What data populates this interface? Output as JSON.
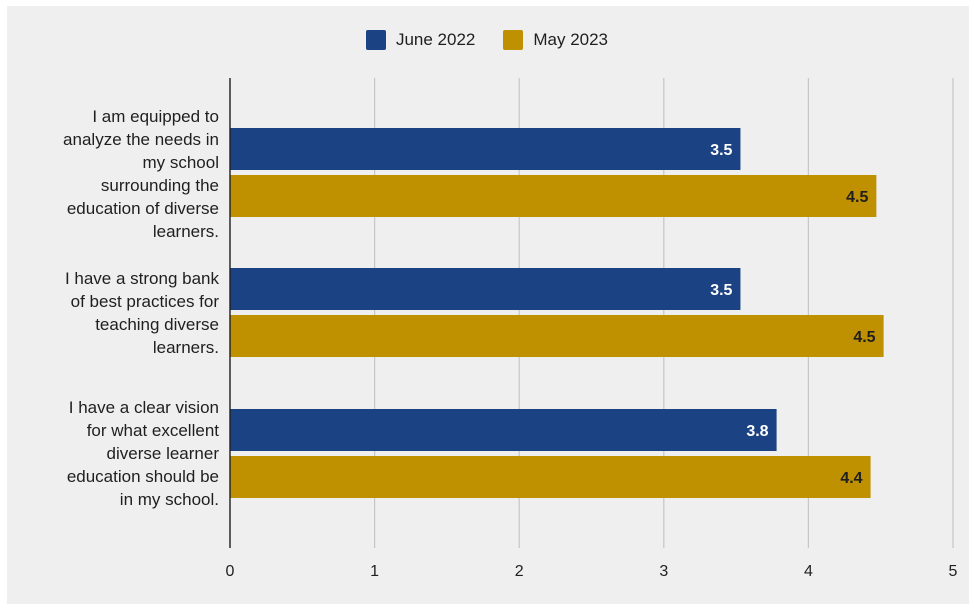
{
  "chart_data": {
    "type": "bar",
    "orientation": "horizontal",
    "title": "",
    "xlabel": "",
    "ylabel": "",
    "xlim": [
      0,
      5
    ],
    "ticks": [
      "0",
      "1",
      "2",
      "3",
      "4",
      "5"
    ],
    "grid": true,
    "legend_position": "top",
    "categories": [
      "I am equipped to analyze the needs in my school surrounding the education of diverse learners.",
      "I have a strong bank of best practices for teaching diverse learners.",
      "I have a clear vision for what excellent diverse learner education should be in my school."
    ],
    "category_lines": [
      [
        "I am equipped to",
        "analyze the needs in",
        "my school",
        "surrounding the",
        "education of diverse",
        "learners."
      ],
      [
        "I have a strong bank",
        "of best practices for",
        "teaching diverse",
        "learners."
      ],
      [
        "I have a clear vision",
        "for what excellent",
        "diverse learner",
        "education should be",
        "in my school."
      ]
    ],
    "series": [
      {
        "name": "June 2022",
        "color": "#1b4282",
        "label_color": "#ffffff",
        "values": [
          3.53,
          3.53,
          3.78
        ],
        "labels": [
          "3.5",
          "3.5",
          "3.8"
        ]
      },
      {
        "name": "May 2023",
        "color": "#bf9000",
        "label_color": "#1f1f1f",
        "values": [
          4.47,
          4.52,
          4.43
        ],
        "labels": [
          "4.5",
          "4.5",
          "4.4"
        ]
      }
    ]
  }
}
